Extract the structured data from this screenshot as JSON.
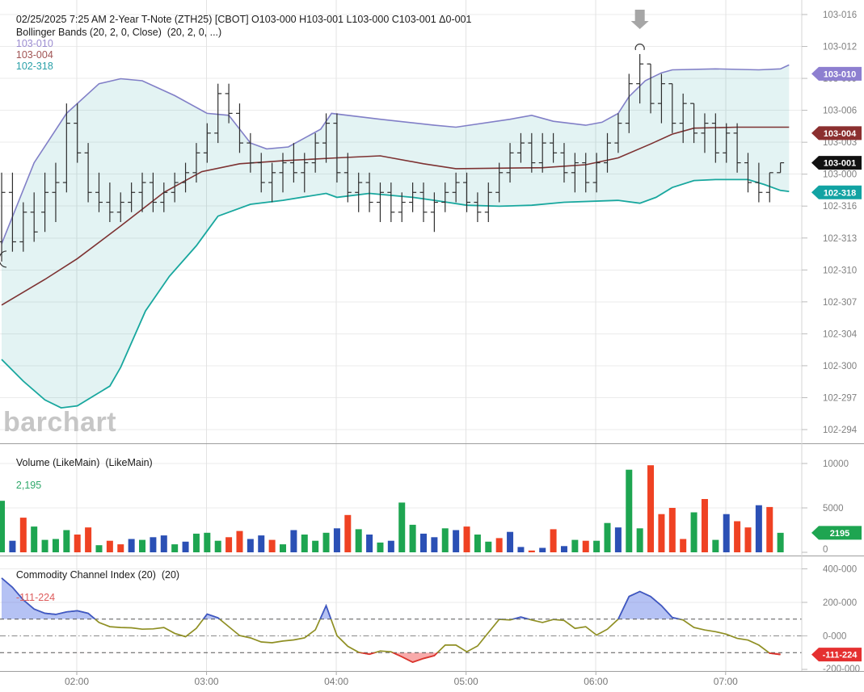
{
  "header": {
    "line1": "02/25/2025 7:25 AM 2-Year T-Note (ZTH25) [CBOT] O103-000 H103-001 L103-000 C103-001 Δ0-001",
    "indicator": "Bollinger Bands (20, 2, 0, Close)  (20, 2, 0, ...)",
    "bb_values": {
      "upper": "103-010",
      "middle": "103-004",
      "lower": "102-318"
    }
  },
  "panes": {
    "volume": {
      "label": "Volume (LikeMain)  (LikeMain)",
      "value": "2,195"
    },
    "cci": {
      "label": "Commodity Channel Index (20)  (20)",
      "value": "-111-224"
    }
  },
  "watermark": "barchart",
  "colors": {
    "bb_upper": "#817fc7",
    "bb_middle": "#7d3232",
    "bb_lower": "#18a79e",
    "bb_fill": "rgba(0,150,150,0.11)",
    "ohlc_bar": "#2e2e2e",
    "vol_up": "#1EA551",
    "vol_down": "#EF4223",
    "vol_neutral": "#2B50B5",
    "cci_line": "#8f8f23",
    "cci_above": "#3c55cc",
    "cci_below": "#e03030",
    "cci_fill_above": "rgba(90,120,230,0.45)",
    "cci_fill_below": "rgba(242,100,100,0.55)",
    "badge_upper": "#8d7fd0",
    "badge_middle": "#8b2f2f",
    "badge_last": "#111111",
    "badge_lower": "#12a3a3",
    "badge_volume": "#1EA551",
    "badge_cci": "#e53030",
    "hdr_upper": "#9a8bd0",
    "hdr_middle": "#a05454",
    "hdr_lower": "#2aa0a8",
    "hdr_volume": "#2fa86b",
    "hdr_cci": "#de5b5b",
    "axis_text": "#808080",
    "grid": "#ebebeb",
    "grid_hour": "#e3e3e3",
    "divider": "#9e9e9e",
    "arrow": "#a6a6a6"
  },
  "price_axis": {
    "labels": [
      "103-016",
      "103-012",
      "103-009",
      "103-006",
      "103-003",
      "103-000",
      "102-316",
      "102-313",
      "102-310",
      "102-307",
      "102-304",
      "102-300",
      "102-297",
      "102-294"
    ],
    "badges": [
      {
        "text": "103-010",
        "price": 330,
        "color_key": "badge_upper"
      },
      {
        "text": "103-004",
        "price": 324,
        "color_key": "badge_middle"
      },
      {
        "text": "103-001",
        "price": 321,
        "color_key": "badge_last"
      },
      {
        "text": "102-318",
        "price": 318,
        "color_key": "badge_lower"
      }
    ]
  },
  "volume_axis": {
    "ticks": [
      {
        "v": 10000,
        "label": "10000"
      },
      {
        "v": 5000,
        "label": "5000"
      },
      {
        "v": 0,
        "label": "0"
      }
    ],
    "badge": {
      "text": "2195",
      "v": 2195
    }
  },
  "cci_axis": {
    "ticks": [
      {
        "v": 400,
        "label": "400-000"
      },
      {
        "v": 200,
        "label": "200-000"
      },
      {
        "v": 0,
        "label": "0-000"
      },
      {
        "v": -200,
        "label": "-200-000"
      }
    ],
    "thresholds": [
      100,
      -100
    ],
    "badge": {
      "text": "-111-224",
      "v": -111.2
    }
  },
  "time_axis": {
    "labels": [
      "02:00",
      "03:00",
      "04:00",
      "05:00",
      "06:00",
      "07:00"
    ]
  },
  "chart_data": {
    "type": "ohlc",
    "title": "2-Year T-Note (ZTH25) [CBOT] 5-minute bars with Bollinger Bands, Volume, CCI",
    "price_units": "320ths of a point above 102 (320 = 103-000, 294 = 102-294)",
    "interval_minutes": 5,
    "first_bar_time": "01:25",
    "last_bar_time": "07:25",
    "price_gridrange": [
      294,
      336
    ],
    "volume_range": [
      0,
      10000
    ],
    "cci_gridrange": [
      -200,
      400
    ],
    "bars": [
      [
        313,
        320,
        311,
        318
      ],
      [
        318,
        320,
        312,
        313
      ],
      [
        313,
        317,
        312,
        316
      ],
      [
        316,
        318,
        313,
        314
      ],
      [
        316,
        320,
        314,
        318
      ],
      [
        318,
        321,
        315,
        319
      ],
      [
        319,
        327,
        318,
        325
      ],
      [
        325,
        327,
        321,
        322
      ],
      [
        322,
        323,
        317,
        318
      ],
      [
        318,
        320,
        316,
        317
      ],
      [
        317,
        319,
        315,
        316
      ],
      [
        316,
        318,
        315,
        317
      ],
      [
        317,
        319,
        316,
        318
      ],
      [
        318,
        320,
        316,
        319
      ],
      [
        319,
        320,
        316,
        317
      ],
      [
        317,
        319,
        316,
        318
      ],
      [
        318,
        320,
        317,
        319
      ],
      [
        319,
        321,
        318,
        320
      ],
      [
        320,
        323,
        319,
        322
      ],
      [
        322,
        325,
        321,
        324
      ],
      [
        324,
        329,
        323,
        328
      ],
      [
        328,
        329,
        325,
        326
      ],
      [
        326,
        327,
        322,
        323
      ],
      [
        323,
        324,
        320,
        321
      ],
      [
        321,
        322,
        318,
        319
      ],
      [
        319,
        321,
        317,
        320
      ],
      [
        320,
        322,
        318,
        321
      ],
      [
        321,
        323,
        319,
        320
      ],
      [
        320,
        322,
        318,
        321
      ],
      [
        321,
        324,
        320,
        323
      ],
      [
        323,
        326,
        321,
        325
      ],
      [
        325,
        326,
        319,
        320
      ],
      [
        320,
        322,
        317,
        318
      ],
      [
        318,
        320,
        316,
        319
      ],
      [
        319,
        320,
        316,
        317
      ],
      [
        317,
        319,
        315,
        318
      ],
      [
        318,
        319,
        315,
        316
      ],
      [
        316,
        318,
        315,
        317
      ],
      [
        317,
        319,
        316,
        318
      ],
      [
        318,
        319,
        315,
        316
      ],
      [
        316,
        318,
        314,
        317
      ],
      [
        317,
        319,
        316,
        318
      ],
      [
        318,
        320,
        317,
        319
      ],
      [
        319,
        320,
        316,
        317
      ],
      [
        317,
        318,
        315,
        316
      ],
      [
        316,
        319,
        315,
        318
      ],
      [
        318,
        321,
        317,
        320
      ],
      [
        320,
        323,
        319,
        322
      ],
      [
        322,
        324,
        321,
        323
      ],
      [
        323,
        324,
        320,
        321
      ],
      [
        321,
        324,
        320,
        323
      ],
      [
        323,
        324,
        321,
        322
      ],
      [
        322,
        323,
        319,
        320
      ],
      [
        320,
        322,
        318,
        321
      ],
      [
        321,
        322,
        318,
        319
      ],
      [
        319,
        322,
        318,
        321
      ],
      [
        321,
        324,
        320,
        323
      ],
      [
        323,
        326,
        322,
        325
      ],
      [
        325,
        330,
        324,
        329
      ],
      [
        329,
        332,
        327,
        331
      ],
      [
        331,
        331,
        326,
        327
      ],
      [
        327,
        330,
        325,
        329
      ],
      [
        329,
        329,
        324,
        325
      ],
      [
        325,
        328,
        323,
        327
      ],
      [
        327,
        327,
        323,
        324
      ],
      [
        324,
        326,
        322,
        325
      ],
      [
        325,
        326,
        321,
        322
      ],
      [
        322,
        325,
        321,
        324
      ],
      [
        324,
        325,
        320,
        321
      ],
      [
        321,
        322,
        318,
        319
      ],
      [
        319,
        321,
        317,
        318
      ],
      [
        318,
        320,
        317,
        320
      ],
      [
        320,
        321,
        320,
        321
      ]
    ],
    "bollinger_upper": [
      [
        0,
        312.8
      ],
      [
        3,
        321
      ],
      [
        6,
        326
      ],
      [
        9,
        329
      ],
      [
        11,
        329.5
      ],
      [
        13,
        329.3
      ],
      [
        16,
        327.8
      ],
      [
        19,
        326
      ],
      [
        21,
        325.8
      ],
      [
        23,
        323
      ],
      [
        24.5,
        322.4
      ],
      [
        26.5,
        322.6
      ],
      [
        29.5,
        324.4
      ],
      [
        30.5,
        326
      ],
      [
        35,
        325.4
      ],
      [
        40,
        324.8
      ],
      [
        42,
        324.6
      ],
      [
        47,
        325.4
      ],
      [
        49,
        325.8
      ],
      [
        51,
        325.2
      ],
      [
        54,
        324.8
      ],
      [
        55.5,
        325.1
      ],
      [
        57,
        326
      ],
      [
        58,
        327.7
      ],
      [
        59.5,
        329.3
      ],
      [
        61,
        330.1
      ],
      [
        62,
        330.4
      ],
      [
        66,
        330.5
      ],
      [
        70,
        330.4
      ],
      [
        72,
        330.5
      ],
      [
        72.8,
        330.9
      ]
    ],
    "bollinger_middle": [
      [
        0,
        306.6
      ],
      [
        4,
        309.2
      ],
      [
        7,
        311.3
      ],
      [
        11,
        314.6
      ],
      [
        15,
        318
      ],
      [
        18.5,
        320.1
      ],
      [
        22,
        320.9
      ],
      [
        26,
        321.2
      ],
      [
        31,
        321.5
      ],
      [
        35,
        321.7
      ],
      [
        39,
        320.9
      ],
      [
        42,
        320.4
      ],
      [
        50,
        320.5
      ],
      [
        54,
        320.8
      ],
      [
        57,
        321.5
      ],
      [
        60,
        322.9
      ],
      [
        62,
        323.9
      ],
      [
        64,
        324.5
      ],
      [
        68,
        324.6
      ],
      [
        72.8,
        324.6
      ]
    ],
    "bollinger_lower": [
      [
        0,
        301.1
      ],
      [
        2,
        298.9
      ],
      [
        4,
        297
      ],
      [
        5.5,
        296.2
      ],
      [
        7,
        296.4
      ],
      [
        8.5,
        297.4
      ],
      [
        10,
        298.4
      ],
      [
        11,
        300.3
      ],
      [
        13.3,
        306
      ],
      [
        15.5,
        309.5
      ],
      [
        18,
        312.6
      ],
      [
        20,
        315.6
      ],
      [
        23,
        316.8
      ],
      [
        26,
        317.2
      ],
      [
        30,
        317.9
      ],
      [
        31,
        317.5
      ],
      [
        34,
        317.9
      ],
      [
        38,
        317.5
      ],
      [
        40,
        317.2
      ],
      [
        43,
        316.7
      ],
      [
        46,
        316.6
      ],
      [
        49,
        316.7
      ],
      [
        52,
        317
      ],
      [
        57,
        317.2
      ],
      [
        59,
        316.9
      ],
      [
        60.5,
        317.5
      ],
      [
        62,
        318.5
      ],
      [
        64,
        319.2
      ],
      [
        66,
        319.3
      ],
      [
        69,
        319.3
      ],
      [
        70.5,
        318.8
      ],
      [
        72,
        318.2
      ],
      [
        72.8,
        318.1
      ]
    ],
    "volume": [
      5800,
      1300,
      3900,
      2900,
      1400,
      1500,
      2500,
      2000,
      2800,
      800,
      1300,
      900,
      1500,
      1400,
      1700,
      1900,
      900,
      1200,
      2100,
      2200,
      1300,
      1700,
      2400,
      1500,
      1900,
      1400,
      900,
      2500,
      2000,
      1300,
      2200,
      2700,
      4200,
      2600,
      2000,
      1100,
      1300,
      5600,
      3100,
      2100,
      1700,
      2700,
      2500,
      2900,
      2000,
      1200,
      1600,
      2300,
      600,
      200,
      500,
      2600,
      700,
      1400,
      1300,
      1300,
      3300,
      2800,
      9300,
      2700,
      9800,
      4300,
      5000,
      1500,
      4500,
      6000,
      1400,
      4300,
      3500,
      2800,
      5300,
      5100,
      2195
    ],
    "volume_dir": [
      "g",
      "b",
      "r",
      "g",
      "g",
      "g",
      "g",
      "r",
      "r",
      "g",
      "r",
      "r",
      "b",
      "g",
      "b",
      "b",
      "g",
      "b",
      "g",
      "g",
      "g",
      "r",
      "r",
      "b",
      "b",
      "r",
      "g",
      "b",
      "g",
      "g",
      "g",
      "b",
      "r",
      "g",
      "b",
      "g",
      "b",
      "g",
      "g",
      "b",
      "b",
      "g",
      "b",
      "r",
      "g",
      "g",
      "r",
      "b",
      "b",
      "r",
      "b",
      "r",
      "b",
      "g",
      "r",
      "g",
      "g",
      "b",
      "g",
      "g",
      "r",
      "r",
      "r",
      "r",
      "g",
      "r",
      "g",
      "b",
      "r",
      "r",
      "b",
      "r",
      "g"
    ],
    "cci": [
      345,
      290,
      215,
      160,
      135,
      128,
      143,
      150,
      135,
      80,
      55,
      50,
      48,
      40,
      42,
      50,
      15,
      -5,
      45,
      130,
      108,
      55,
      2,
      -12,
      -36,
      -41,
      -31,
      -24,
      -12,
      36,
      180,
      2,
      -62,
      -98,
      -110,
      -90,
      -95,
      -125,
      -157,
      -135,
      -118,
      -55,
      -55,
      -95,
      -60,
      20,
      99,
      95,
      113,
      95,
      80,
      98,
      92,
      45,
      55,
      5,
      40,
      100,
      235,
      265,
      235,
      180,
      110,
      95,
      50,
      35,
      25,
      10,
      -15,
      -25,
      -55,
      -103,
      -111.2
    ],
    "annotations": {
      "arrow_bar": 59,
      "circle_high_bar": 59,
      "circle_low_bar": 0
    }
  }
}
